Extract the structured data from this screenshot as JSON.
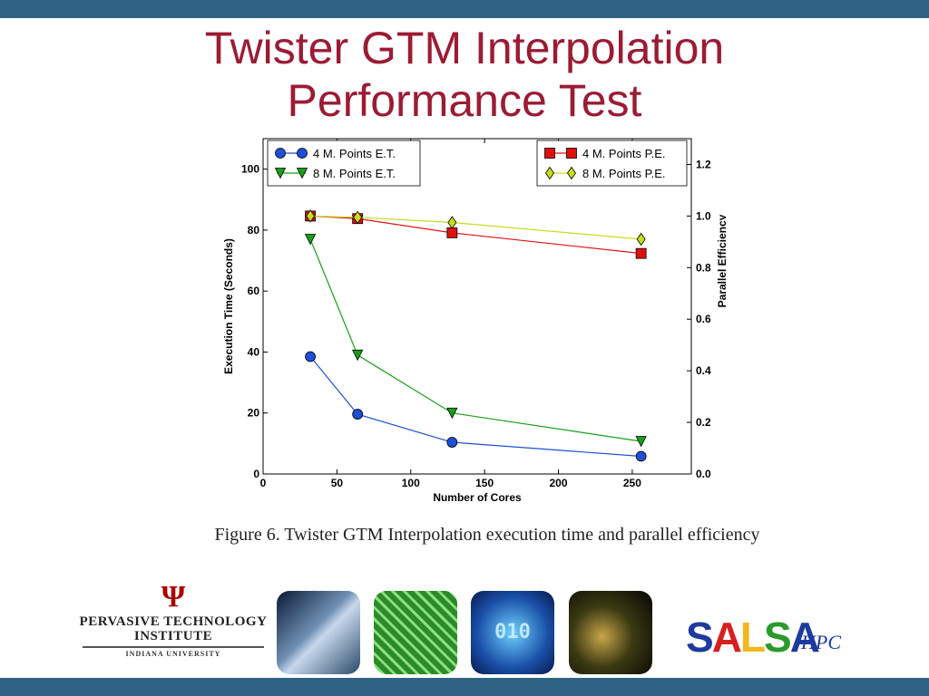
{
  "slide": {
    "title_line1": "Twister GTM Interpolation",
    "title_line2": "Performance Test"
  },
  "caption": "Figure 6. Twister GTM Interpolation execution time and parallel efficiency",
  "colors": {
    "bar": "#2e6384",
    "title": "#9c1b34"
  },
  "chart_data": {
    "type": "line",
    "xlabel": "Number of Cores",
    "ylabel": "Execution Time (Seconds)",
    "y2label": "Parallel Efficiency",
    "xlim": [
      0,
      290
    ],
    "ylim": [
      0,
      110
    ],
    "y2lim": [
      0,
      1.3
    ],
    "xticks": [
      0,
      50,
      100,
      150,
      200,
      250
    ],
    "yticks": [
      0,
      20,
      40,
      60,
      80,
      100
    ],
    "y2ticks": [
      "0.0",
      "0.2",
      "0.4",
      "0.6",
      "0.8",
      "1.0",
      "1.2"
    ],
    "legend_left": "top-left",
    "legend_right": "top-right",
    "series": [
      {
        "name": "4 M. Points E.T.",
        "axis": "left",
        "marker": "circle",
        "color": "#1f4fd6",
        "x": [
          32,
          64,
          128,
          256
        ],
        "values": [
          38.5,
          19.6,
          10.4,
          5.8
        ]
      },
      {
        "name": "8 M. Points E.T.",
        "axis": "left",
        "marker": "triangle-down",
        "color": "#18a018",
        "x": [
          32,
          64,
          128,
          256
        ],
        "values": [
          77,
          39,
          20,
          10.7
        ]
      },
      {
        "name": "4 M. Points P.E.",
        "axis": "right",
        "marker": "square",
        "color": "#e01010",
        "x": [
          32,
          64,
          128,
          256
        ],
        "values": [
          1.0,
          0.99,
          0.935,
          0.855
        ]
      },
      {
        "name": "8 M. Points P.E.",
        "axis": "right",
        "marker": "diamond",
        "color": "#c8dc1c",
        "x": [
          32,
          64,
          128,
          256
        ],
        "values": [
          1.0,
          0.995,
          0.975,
          0.91
        ]
      }
    ]
  },
  "logos": {
    "pti_line1": "PERVASIVE TECHNOLOGY",
    "pti_line2": "INSTITUTE",
    "pti_line3": "INDIANA UNIVERSITY",
    "salsa": "SALSA",
    "hpc": "HPC",
    "tile3_text": "010"
  }
}
